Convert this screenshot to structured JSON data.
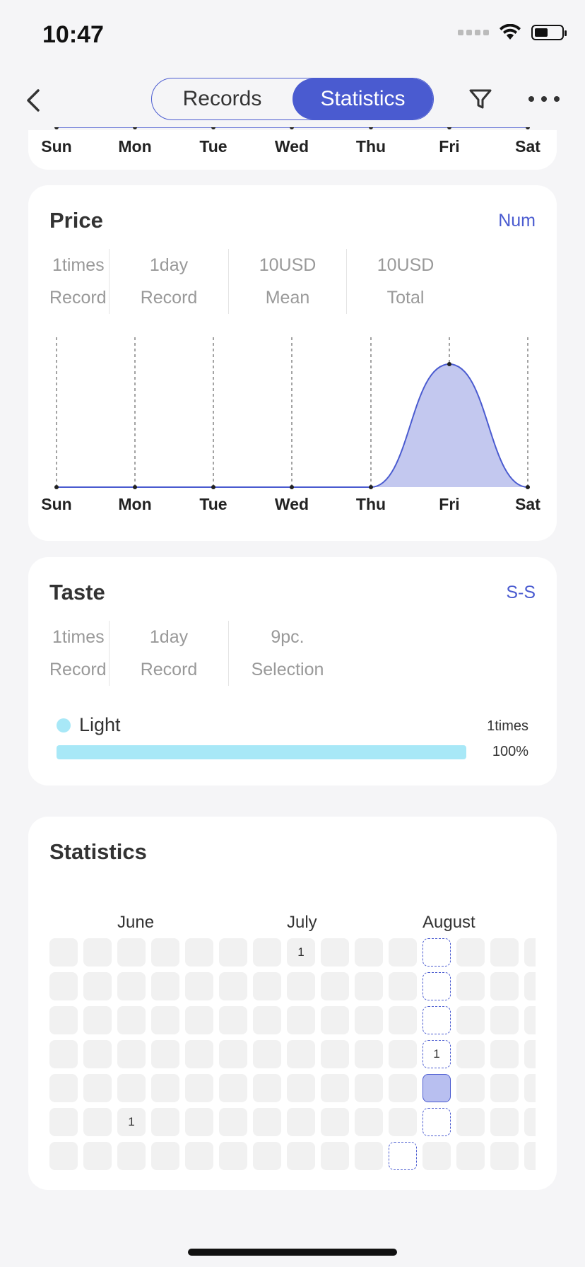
{
  "status_bar": {
    "time": "10:47"
  },
  "nav": {
    "tabs": [
      {
        "label": "Records",
        "active": false
      },
      {
        "label": "Statistics",
        "active": true
      }
    ]
  },
  "days": [
    "Sun",
    "Mon",
    "Tue",
    "Wed",
    "Thu",
    "Fri",
    "Sat"
  ],
  "price_card": {
    "title": "Price",
    "link": "Num",
    "stats": [
      {
        "value": "1times",
        "label": "Record"
      },
      {
        "value": "1day",
        "label": "Record"
      },
      {
        "value": "10USD",
        "label": "Mean"
      },
      {
        "value": "10USD",
        "label": "Total"
      }
    ]
  },
  "taste_card": {
    "title": "Taste",
    "link": "S-S",
    "stats": [
      {
        "value": "1times",
        "label": "Record"
      },
      {
        "value": "1day",
        "label": "Record"
      },
      {
        "value": "9pc.",
        "label": "Selection"
      }
    ],
    "legend": {
      "label": "Light",
      "count": "1times",
      "percent": "100%",
      "fraction": 1.0,
      "color": "#a8e8f7"
    }
  },
  "calendar_card": {
    "title": "Statistics",
    "months": [
      "June",
      "July",
      "August"
    ],
    "marks": [
      {
        "col": 7,
        "row": 0,
        "label": "1",
        "style": "empty"
      },
      {
        "col": 11,
        "row": 0,
        "label": "",
        "style": "dashed"
      },
      {
        "col": 11,
        "row": 1,
        "label": "",
        "style": "dashed"
      },
      {
        "col": 11,
        "row": 2,
        "label": "",
        "style": "dashed"
      },
      {
        "col": 11,
        "row": 3,
        "label": "1",
        "style": "dashed"
      },
      {
        "col": 11,
        "row": 4,
        "label": "",
        "style": "filled"
      },
      {
        "col": 11,
        "row": 5,
        "label": "",
        "style": "dashed"
      },
      {
        "col": 2,
        "row": 5,
        "label": "1",
        "style": "empty"
      },
      {
        "col": 10,
        "row": 6,
        "label": "",
        "style": "dashed"
      }
    ]
  },
  "chart_data": {
    "type": "area",
    "categories": [
      "Sun",
      "Mon",
      "Tue",
      "Wed",
      "Thu",
      "Fri",
      "Sat"
    ],
    "values": [
      0,
      0,
      0,
      0,
      0,
      10,
      0
    ],
    "title": "",
    "xlabel": "",
    "ylabel": "",
    "line_color": "#4a5bd0",
    "fill_color": "#c3c8ef"
  }
}
